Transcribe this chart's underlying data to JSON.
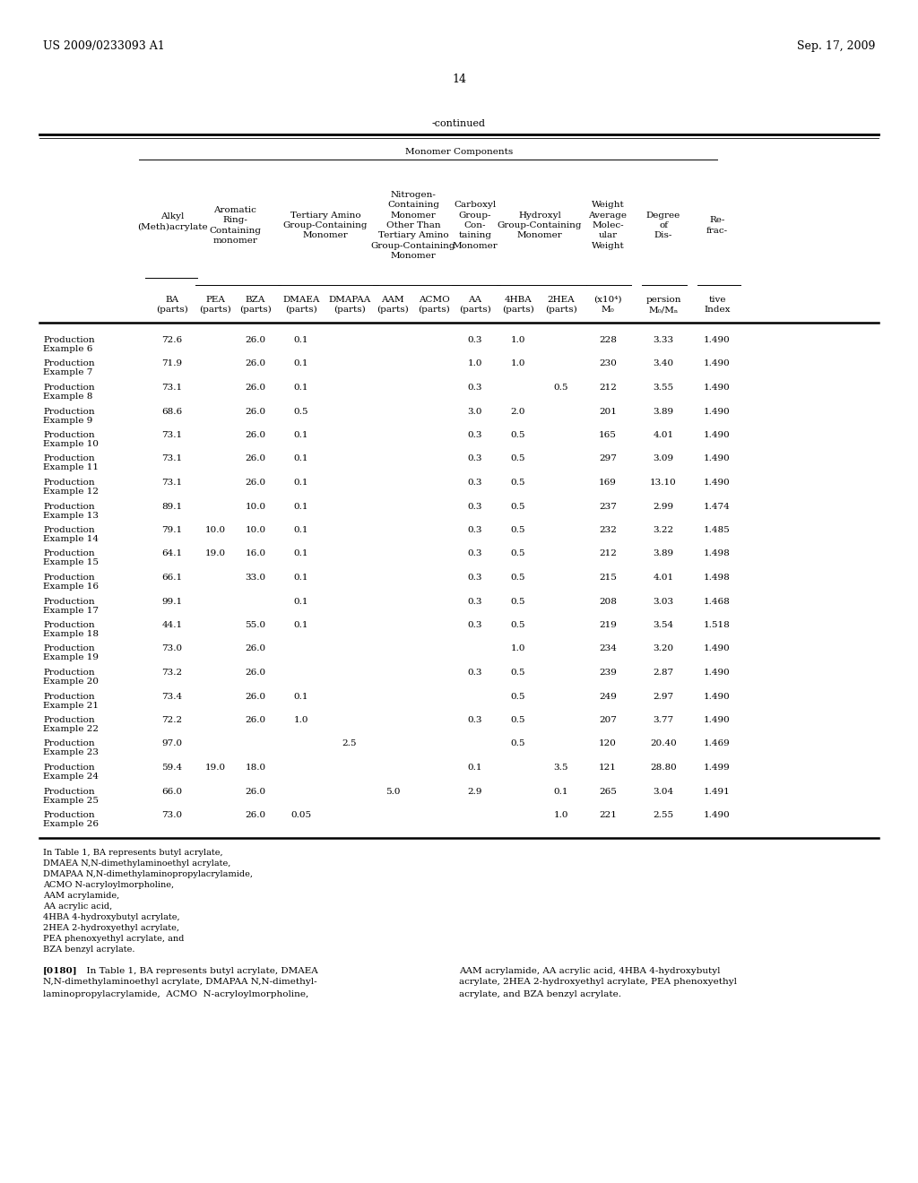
{
  "header_left": "US 2009/0233093 A1",
  "header_right": "Sep. 17, 2009",
  "page_number": "14",
  "continued_label": "-continued",
  "monomer_components_label": "Monomer Components",
  "rows": [
    {
      "label1": "Production",
      "label2": "Example 6",
      "BA": "72.6",
      "PEA": "",
      "BZA": "26.0",
      "DMAEA": "0.1",
      "DMAPAA": "",
      "AAM": "",
      "ACMO": "",
      "AA": "0.3",
      "4HBA": "1.0",
      "2HEA": "",
      "Mw": "228",
      "disp": "3.33",
      "ri": "1.490"
    },
    {
      "label1": "Production",
      "label2": "Example 7",
      "BA": "71.9",
      "PEA": "",
      "BZA": "26.0",
      "DMAEA": "0.1",
      "DMAPAA": "",
      "AAM": "",
      "ACMO": "",
      "AA": "1.0",
      "4HBA": "1.0",
      "2HEA": "",
      "Mw": "230",
      "disp": "3.40",
      "ri": "1.490"
    },
    {
      "label1": "Production",
      "label2": "Example 8",
      "BA": "73.1",
      "PEA": "",
      "BZA": "26.0",
      "DMAEA": "0.1",
      "DMAPAA": "",
      "AAM": "",
      "ACMO": "",
      "AA": "0.3",
      "4HBA": "",
      "2HEA": "0.5",
      "Mw": "212",
      "disp": "3.55",
      "ri": "1.490"
    },
    {
      "label1": "Production",
      "label2": "Example 9",
      "BA": "68.6",
      "PEA": "",
      "BZA": "26.0",
      "DMAEA": "0.5",
      "DMAPAA": "",
      "AAM": "",
      "ACMO": "",
      "AA": "3.0",
      "4HBA": "2.0",
      "2HEA": "",
      "Mw": "201",
      "disp": "3.89",
      "ri": "1.490"
    },
    {
      "label1": "Production",
      "label2": "Example 10",
      "BA": "73.1",
      "PEA": "",
      "BZA": "26.0",
      "DMAEA": "0.1",
      "DMAPAA": "",
      "AAM": "",
      "ACMO": "",
      "AA": "0.3",
      "4HBA": "0.5",
      "2HEA": "",
      "Mw": "165",
      "disp": "4.01",
      "ri": "1.490"
    },
    {
      "label1": "Production",
      "label2": "Example 11",
      "BA": "73.1",
      "PEA": "",
      "BZA": "26.0",
      "DMAEA": "0.1",
      "DMAPAA": "",
      "AAM": "",
      "ACMO": "",
      "AA": "0.3",
      "4HBA": "0.5",
      "2HEA": "",
      "Mw": "297",
      "disp": "3.09",
      "ri": "1.490"
    },
    {
      "label1": "Production",
      "label2": "Example 12",
      "BA": "73.1",
      "PEA": "",
      "BZA": "26.0",
      "DMAEA": "0.1",
      "DMAPAA": "",
      "AAM": "",
      "ACMO": "",
      "AA": "0.3",
      "4HBA": "0.5",
      "2HEA": "",
      "Mw": "169",
      "disp": "13.10",
      "ri": "1.490"
    },
    {
      "label1": "Production",
      "label2": "Example 13",
      "BA": "89.1",
      "PEA": "",
      "BZA": "10.0",
      "DMAEA": "0.1",
      "DMAPAA": "",
      "AAM": "",
      "ACMO": "",
      "AA": "0.3",
      "4HBA": "0.5",
      "2HEA": "",
      "Mw": "237",
      "disp": "2.99",
      "ri": "1.474"
    },
    {
      "label1": "Production",
      "label2": "Example 14",
      "BA": "79.1",
      "PEA": "10.0",
      "BZA": "10.0",
      "DMAEA": "0.1",
      "DMAPAA": "",
      "AAM": "",
      "ACMO": "",
      "AA": "0.3",
      "4HBA": "0.5",
      "2HEA": "",
      "Mw": "232",
      "disp": "3.22",
      "ri": "1.485"
    },
    {
      "label1": "Production",
      "label2": "Example 15",
      "BA": "64.1",
      "PEA": "19.0",
      "BZA": "16.0",
      "DMAEA": "0.1",
      "DMAPAA": "",
      "AAM": "",
      "ACMO": "",
      "AA": "0.3",
      "4HBA": "0.5",
      "2HEA": "",
      "Mw": "212",
      "disp": "3.89",
      "ri": "1.498"
    },
    {
      "label1": "Production",
      "label2": "Example 16",
      "BA": "66.1",
      "PEA": "",
      "BZA": "33.0",
      "DMAEA": "0.1",
      "DMAPAA": "",
      "AAM": "",
      "ACMO": "",
      "AA": "0.3",
      "4HBA": "0.5",
      "2HEA": "",
      "Mw": "215",
      "disp": "4.01",
      "ri": "1.498"
    },
    {
      "label1": "Production",
      "label2": "Example 17",
      "BA": "99.1",
      "PEA": "",
      "BZA": "",
      "DMAEA": "0.1",
      "DMAPAA": "",
      "AAM": "",
      "ACMO": "",
      "AA": "0.3",
      "4HBA": "0.5",
      "2HEA": "",
      "Mw": "208",
      "disp": "3.03",
      "ri": "1.468"
    },
    {
      "label1": "Production",
      "label2": "Example 18",
      "BA": "44.1",
      "PEA": "",
      "BZA": "55.0",
      "DMAEA": "0.1",
      "DMAPAA": "",
      "AAM": "",
      "ACMO": "",
      "AA": "0.3",
      "4HBA": "0.5",
      "2HEA": "",
      "Mw": "219",
      "disp": "3.54",
      "ri": "1.518"
    },
    {
      "label1": "Production",
      "label2": "Example 19",
      "BA": "73.0",
      "PEA": "",
      "BZA": "26.0",
      "DMAEA": "",
      "DMAPAA": "",
      "AAM": "",
      "ACMO": "",
      "AA": "",
      "4HBA": "1.0",
      "2HEA": "",
      "Mw": "234",
      "disp": "3.20",
      "ri": "1.490"
    },
    {
      "label1": "Production",
      "label2": "Example 20",
      "BA": "73.2",
      "PEA": "",
      "BZA": "26.0",
      "DMAEA": "",
      "DMAPAA": "",
      "AAM": "",
      "ACMO": "",
      "AA": "0.3",
      "4HBA": "0.5",
      "2HEA": "",
      "Mw": "239",
      "disp": "2.87",
      "ri": "1.490"
    },
    {
      "label1": "Production",
      "label2": "Example 21",
      "BA": "73.4",
      "PEA": "",
      "BZA": "26.0",
      "DMAEA": "0.1",
      "DMAPAA": "",
      "AAM": "",
      "ACMO": "",
      "AA": "",
      "4HBA": "0.5",
      "2HEA": "",
      "Mw": "249",
      "disp": "2.97",
      "ri": "1.490"
    },
    {
      "label1": "Production",
      "label2": "Example 22",
      "BA": "72.2",
      "PEA": "",
      "BZA": "26.0",
      "DMAEA": "1.0",
      "DMAPAA": "",
      "AAM": "",
      "ACMO": "",
      "AA": "0.3",
      "4HBA": "0.5",
      "2HEA": "",
      "Mw": "207",
      "disp": "3.77",
      "ri": "1.490"
    },
    {
      "label1": "Production",
      "label2": "Example 23",
      "BA": "97.0",
      "PEA": "",
      "BZA": "",
      "DMAEA": "",
      "DMAPAA": "2.5",
      "AAM": "",
      "ACMO": "",
      "AA": "",
      "4HBA": "0.5",
      "2HEA": "",
      "Mw": "120",
      "disp": "20.40",
      "ri": "1.469"
    },
    {
      "label1": "Production",
      "label2": "Example 24",
      "BA": "59.4",
      "PEA": "19.0",
      "BZA": "18.0",
      "DMAEA": "",
      "DMAPAA": "",
      "AAM": "",
      "ACMO": "",
      "AA": "0.1",
      "4HBA": "",
      "2HEA": "3.5",
      "Mw": "121",
      "disp": "28.80",
      "ri": "1.499"
    },
    {
      "label1": "Production",
      "label2": "Example 25",
      "BA": "66.0",
      "PEA": "",
      "BZA": "26.0",
      "DMAEA": "",
      "DMAPAA": "",
      "AAM": "5.0",
      "ACMO": "",
      "AA": "2.9",
      "4HBA": "",
      "2HEA": "0.1",
      "Mw": "265",
      "disp": "3.04",
      "ri": "1.491"
    },
    {
      "label1": "Production",
      "label2": "Example 26",
      "BA": "73.0",
      "PEA": "",
      "BZA": "26.0",
      "DMAEA": "0.05",
      "DMAPAA": "",
      "AAM": "",
      "ACMO": "",
      "AA": "",
      "4HBA": "",
      "2HEA": "1.0",
      "Mw": "221",
      "disp": "2.55",
      "ri": "1.490"
    }
  ],
  "footnotes": [
    "In Table 1, BA represents butyl acrylate,",
    "DMAEA N,N-dimethylaminoethyl acrylate,",
    "DMAPAA N,N-dimethylaminopropylacrylamide,",
    "ACMO N-acryloylmorpholine,",
    "AAM acrylamide,",
    "AA acrylic acid,",
    "4HBA 4-hydroxybutyl acrylate,",
    "2HEA 2-hydroxyethyl acrylate,",
    "PEA phenoxyethyl acrylate, and",
    "BZA benzyl acrylate."
  ],
  "para_bold": "[0180]",
  "para_left_lines": [
    "  In Table 1, BA represents butyl acrylate, DMAEA",
    "N,N-dimethylaminoethyl acrylate, DMAPAA N,N-dimethyl-",
    "laminopropylacrylamide,  ACMO  N-acryloylmorpholine,"
  ],
  "para_right_lines": [
    "AAM acrylamide, AA acrylic acid, 4HBA 4-hydroxybutyl",
    "acrylate, 2HEA 2-hydroxyethyl acrylate, PEA phenoxyethyl",
    "acrylate, and BZA benzyl acrylate."
  ]
}
